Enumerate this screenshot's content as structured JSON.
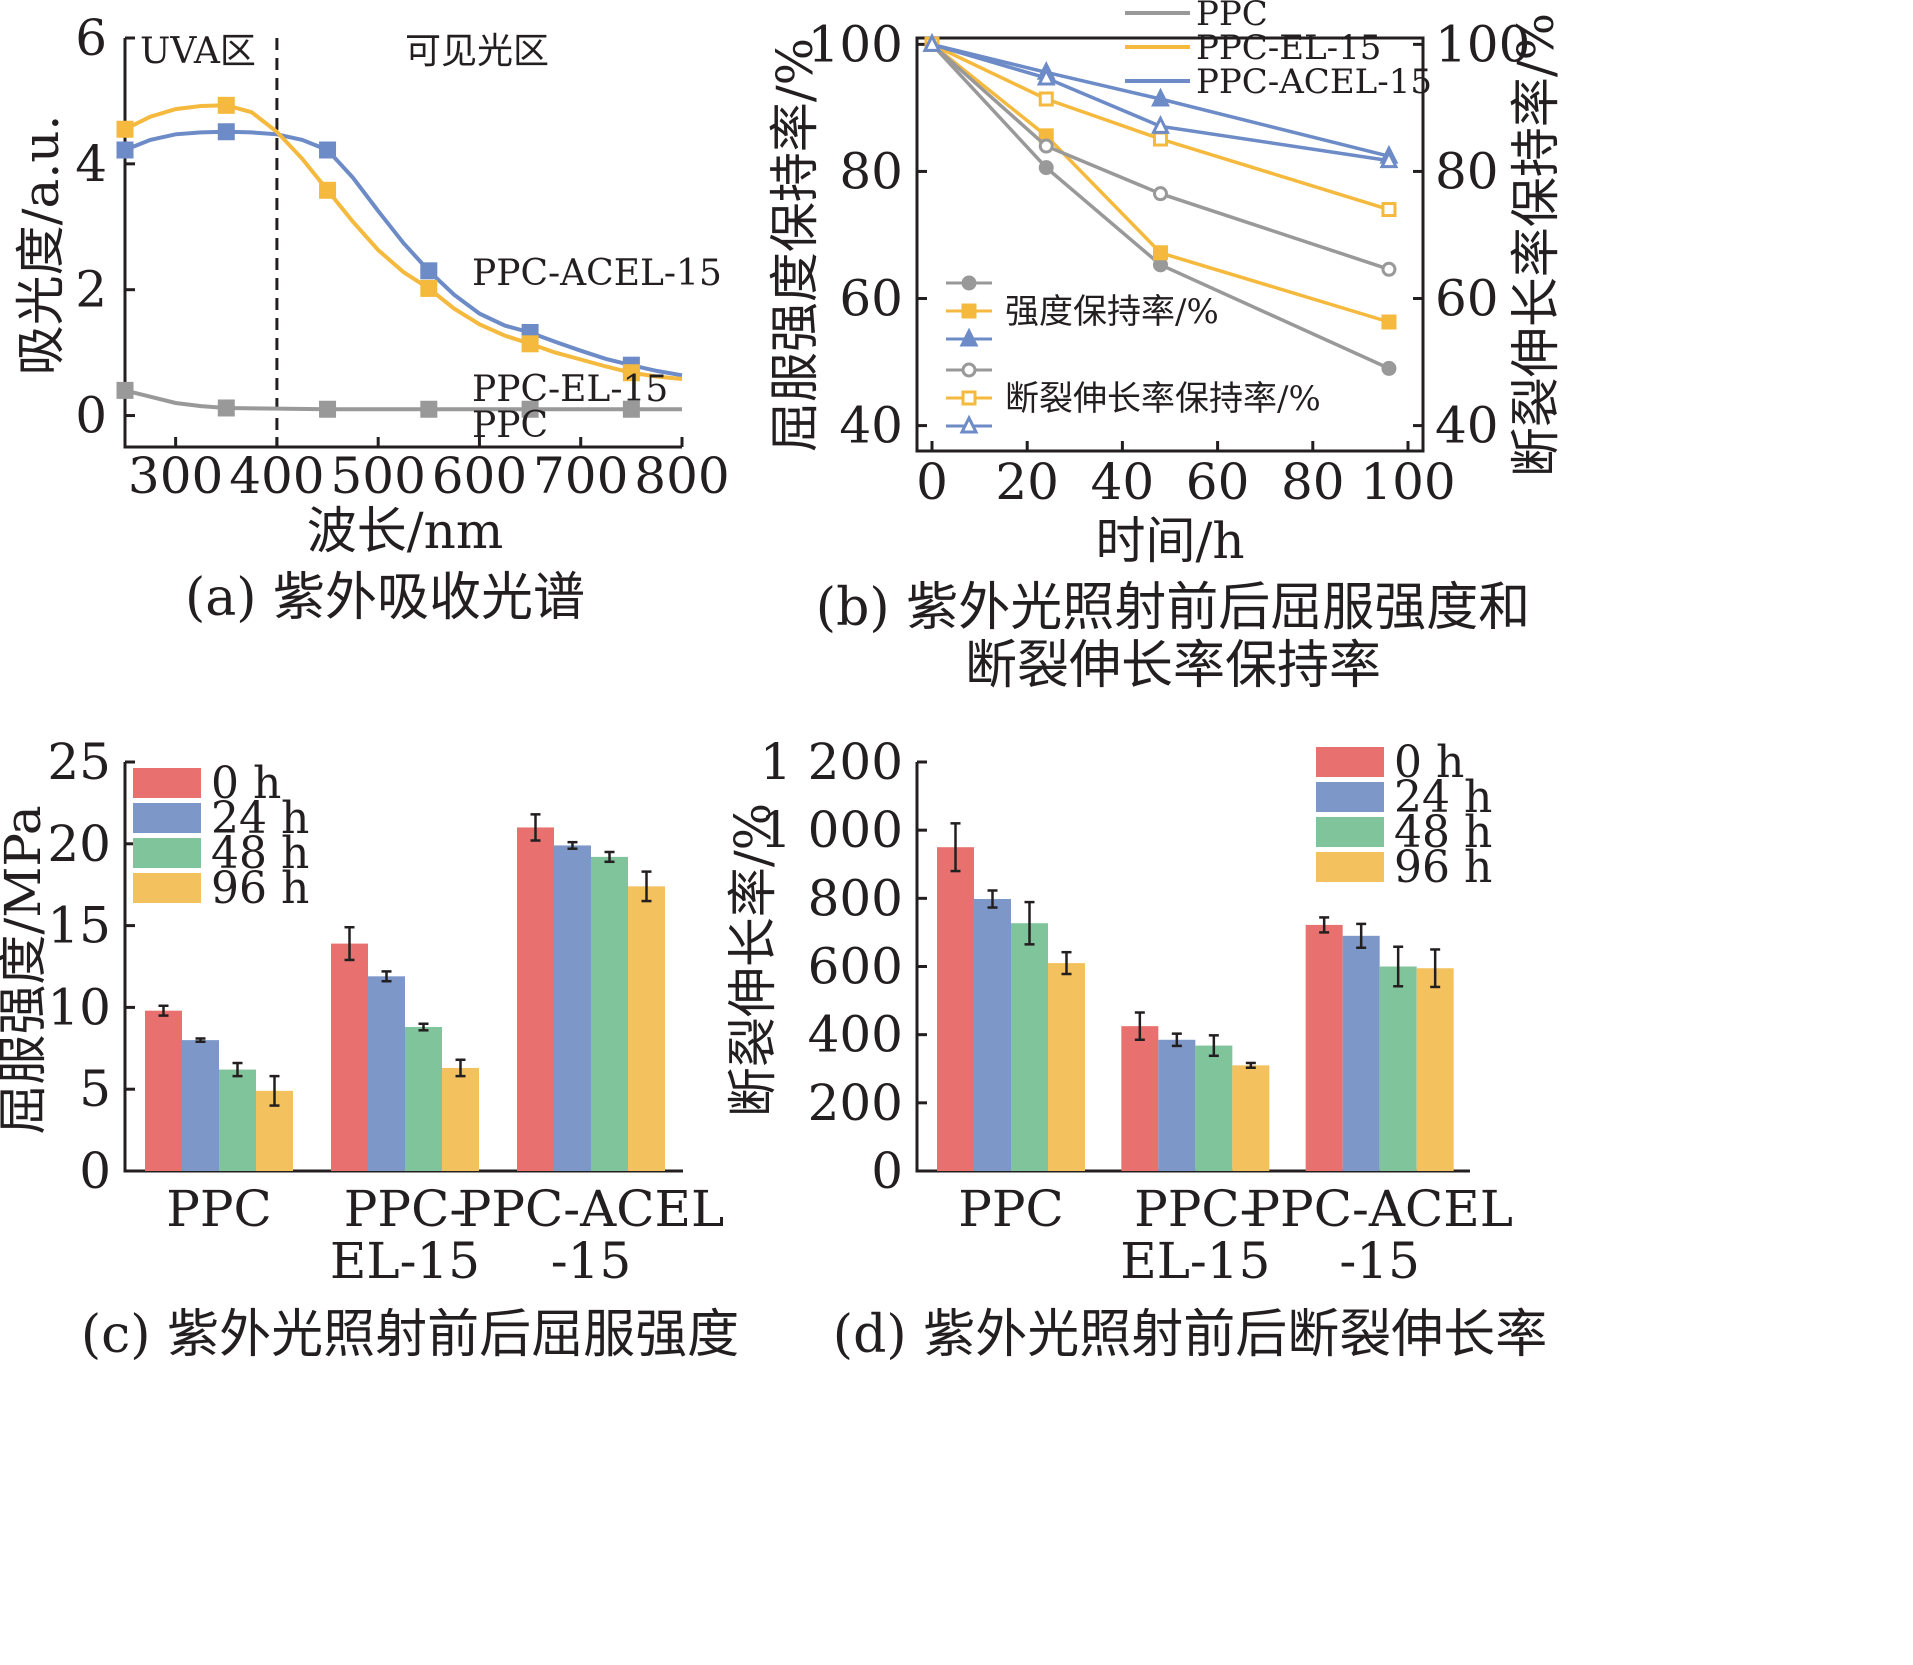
{
  "colors": {
    "ppc": "#999999",
    "el": "#f5b93e",
    "acel": "#6c8bc7",
    "bar_0h": "#e8716f",
    "bar_24h": "#7d97c9",
    "bar_48h": "#7fc49a",
    "bar_96h": "#f3c25f"
  },
  "chart_data": [
    {
      "id": "a",
      "type": "line",
      "caption": "(a) 紫外吸收光谱",
      "xlabel": "波长/nm",
      "ylabel": "吸光度/a.u.",
      "xlim": [
        250,
        800
      ],
      "ylim": [
        -0.5,
        6
      ],
      "xticks": [
        300,
        400,
        500,
        600,
        700,
        800
      ],
      "yticks": [
        0,
        2,
        4,
        6
      ],
      "region_labels": [
        "UVA区",
        "可见光区"
      ],
      "divider_x": 400,
      "series": [
        {
          "name": "PPC-ACEL-15",
          "color_key": "acel",
          "x": [
            250,
            350,
            450,
            550,
            650,
            750
          ],
          "y": [
            4.22,
            4.51,
            4.22,
            2.3,
            1.32,
            0.8
          ],
          "curve_x": [
            250,
            275,
            300,
            325,
            350,
            375,
            400,
            425,
            450,
            475,
            500,
            525,
            550,
            575,
            600,
            625,
            650,
            675,
            700,
            725,
            750,
            775,
            800
          ],
          "curve_y": [
            4.22,
            4.38,
            4.47,
            4.5,
            4.51,
            4.5,
            4.47,
            4.38,
            4.22,
            3.78,
            3.25,
            2.74,
            2.3,
            1.92,
            1.62,
            1.43,
            1.32,
            1.17,
            1.03,
            0.9,
            0.8,
            0.71,
            0.64
          ]
        },
        {
          "name": "PPC-EL-15",
          "color_key": "el",
          "x": [
            250,
            350,
            450,
            550,
            650,
            750
          ],
          "y": [
            4.55,
            4.93,
            3.58,
            2.02,
            1.14,
            0.68
          ],
          "curve_x": [
            250,
            275,
            300,
            325,
            350,
            375,
            400,
            425,
            450,
            475,
            500,
            525,
            550,
            575,
            600,
            625,
            650,
            675,
            700,
            725,
            750,
            775,
            800
          ],
          "curve_y": [
            4.55,
            4.75,
            4.87,
            4.92,
            4.93,
            4.82,
            4.51,
            4.08,
            3.58,
            3.08,
            2.63,
            2.28,
            2.02,
            1.7,
            1.45,
            1.27,
            1.14,
            1.0,
            0.89,
            0.78,
            0.68,
            0.62,
            0.58
          ]
        },
        {
          "name": "PPC",
          "color_key": "ppc",
          "x": [
            250,
            350,
            450,
            550,
            650,
            750
          ],
          "y": [
            0.4,
            0.12,
            0.1,
            0.1,
            0.1,
            0.1
          ],
          "curve_x": [
            250,
            275,
            300,
            325,
            350,
            400,
            450,
            550,
            650,
            750,
            800
          ],
          "curve_y": [
            0.4,
            0.3,
            0.2,
            0.15,
            0.12,
            0.11,
            0.1,
            0.1,
            0.1,
            0.1,
            0.1
          ]
        }
      ]
    },
    {
      "id": "b",
      "type": "line",
      "caption": [
        "(b) 紫外光照射前后屈服强度和",
        "断裂伸长率保持率"
      ],
      "xlabel": "时间/h",
      "ylabel": "屈服强度保持率/%",
      "ylabel_right": "断裂伸长率保持率/%",
      "xlim": [
        0,
        100
      ],
      "ylim": [
        36,
        101
      ],
      "xticks": [
        0,
        20,
        40,
        60,
        80,
        100
      ],
      "yticks": [
        40,
        60,
        80,
        100
      ],
      "legend": {
        "names": [
          "PPC",
          "PPC-EL-15",
          "PPC-ACEL-15"
        ],
        "group_labels": [
          "强度保持率/%",
          "断裂伸长率保持率/%"
        ],
        "placement": "top-center"
      },
      "series": [
        {
          "name": "PPC",
          "group": "强度保持率/%",
          "color_key": "ppc",
          "marker": "circle",
          "filled": true,
          "x": [
            0,
            24,
            48,
            96
          ],
          "y": [
            100,
            80.6,
            65.3,
            49.0
          ]
        },
        {
          "name": "PPC-EL-15",
          "group": "强度保持率/%",
          "color_key": "el",
          "marker": "square",
          "filled": true,
          "x": [
            0,
            24,
            48,
            96
          ],
          "y": [
            100,
            85.6,
            67.2,
            56.3
          ]
        },
        {
          "name": "PPC-ACEL-15",
          "group": "强度保持率/%",
          "color_key": "acel",
          "marker": "triangle",
          "filled": true,
          "x": [
            0,
            24,
            48,
            96
          ],
          "y": [
            100,
            95.6,
            91.4,
            82.4
          ]
        },
        {
          "name": "PPC",
          "group": "断裂伸长率保持率/%",
          "color_key": "ppc",
          "marker": "circle",
          "filled": false,
          "x": [
            0,
            24,
            48,
            96
          ],
          "y": [
            100,
            84.0,
            76.5,
            64.6
          ]
        },
        {
          "name": "PPC-EL-15",
          "group": "断裂伸长率保持率/%",
          "color_key": "el",
          "marker": "square",
          "filled": false,
          "x": [
            0,
            24,
            48,
            96
          ],
          "y": [
            100,
            91.4,
            85.1,
            74.0
          ]
        },
        {
          "name": "PPC-ACEL-15",
          "group": "断裂伸长率保持率/%",
          "color_key": "acel",
          "marker": "triangle",
          "filled": false,
          "x": [
            0,
            24,
            48,
            96
          ],
          "y": [
            100,
            94.7,
            87.1,
            81.7
          ]
        }
      ]
    },
    {
      "id": "c",
      "type": "bar",
      "caption": "(c) 紫外光照射前后屈服强度",
      "xlabel": "",
      "ylabel": "屈服强度/MPa",
      "ylim": [
        0,
        25
      ],
      "yticks": [
        0,
        5,
        10,
        15,
        20,
        25
      ],
      "categories": [
        [
          "PPC"
        ],
        [
          "PPC-",
          "EL-15"
        ],
        [
          "PPC-ACEL",
          "-15"
        ]
      ],
      "legend": {
        "placement": "top-left"
      },
      "series": [
        {
          "name": "0 h",
          "color_key": "bar_0h",
          "values": [
            9.8,
            13.9,
            21.0
          ],
          "errors": [
            0.3,
            1.0,
            0.8
          ]
        },
        {
          "name": "24 h",
          "color_key": "bar_24h",
          "values": [
            8.0,
            11.9,
            19.9
          ],
          "errors": [
            0.1,
            0.3,
            0.2
          ]
        },
        {
          "name": "48 h",
          "color_key": "bar_48h",
          "values": [
            6.2,
            8.8,
            19.2
          ],
          "errors": [
            0.4,
            0.2,
            0.3
          ]
        },
        {
          "name": "96 h",
          "color_key": "bar_96h",
          "values": [
            4.9,
            6.3,
            17.4
          ],
          "errors": [
            0.9,
            0.5,
            0.9
          ]
        }
      ]
    },
    {
      "id": "d",
      "type": "bar",
      "caption": "(d) 紫外光照射前后断裂伸长率",
      "xlabel": "",
      "ylabel": "断裂伸长率/%",
      "ylim": [
        0,
        1200
      ],
      "yticks": [
        0,
        200,
        400,
        600,
        800,
        1000,
        1200
      ],
      "ytick_labels": [
        "0",
        "200",
        "400",
        "600",
        "800",
        "1 000",
        "1 200"
      ],
      "categories": [
        [
          "PPC"
        ],
        [
          "PPC-",
          "EL-15"
        ],
        [
          "PPC-ACEL",
          "-15"
        ]
      ],
      "legend": {
        "placement": "top-right"
      },
      "series": [
        {
          "name": "0 h",
          "color_key": "bar_0h",
          "values": [
            950,
            425,
            722
          ],
          "errors": [
            70,
            40,
            22
          ]
        },
        {
          "name": "24 h",
          "color_key": "bar_24h",
          "values": [
            798,
            385,
            690
          ],
          "errors": [
            25,
            18,
            35
          ]
        },
        {
          "name": "48 h",
          "color_key": "bar_48h",
          "values": [
            727,
            368,
            600
          ],
          "errors": [
            62,
            30,
            58
          ]
        },
        {
          "name": "96 h",
          "color_key": "bar_96h",
          "values": [
            610,
            310,
            595
          ],
          "errors": [
            32,
            7,
            55
          ]
        }
      ]
    }
  ]
}
